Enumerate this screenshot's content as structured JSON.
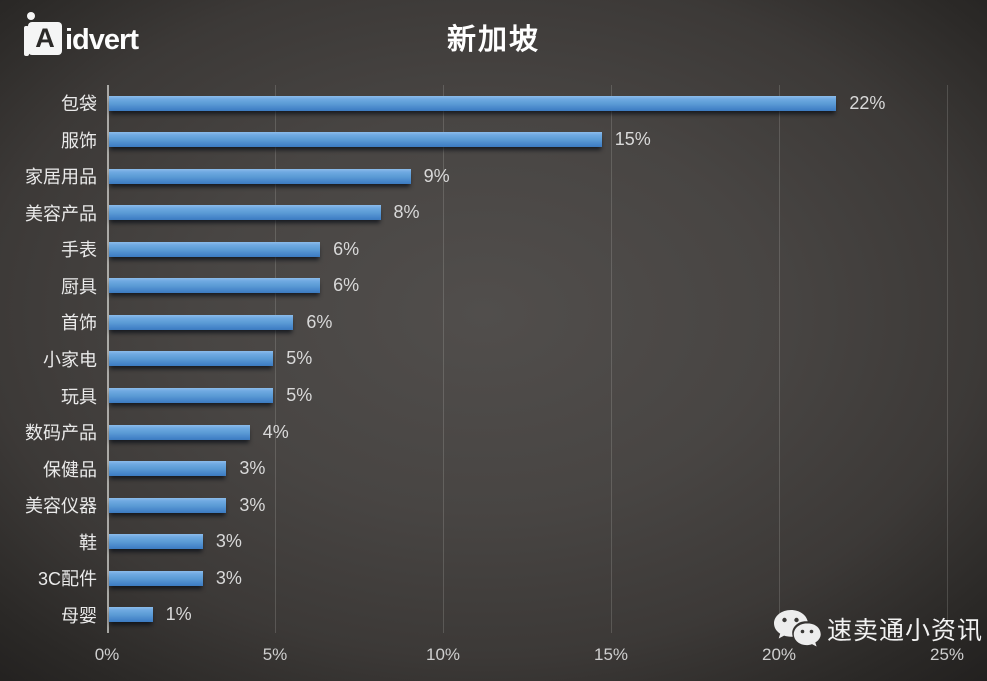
{
  "branding": {
    "logo_mark_letter": "A",
    "logo_text": "idvert"
  },
  "watermark": {
    "icon": "wechat-icon",
    "text": "速卖通小资讯"
  },
  "chart_data": {
    "type": "bar",
    "orientation": "horizontal",
    "title": "新加坡",
    "categories": [
      "包袋",
      "服饰",
      "家居用品",
      "美容产品",
      "手表",
      "厨具",
      "首饰",
      "小家电",
      "玩具",
      "数码产品",
      "保健品",
      "美容仪器",
      "鞋",
      "3C配件",
      "母婴"
    ],
    "values": [
      22,
      15,
      9,
      8,
      6,
      6,
      6,
      5,
      5,
      4,
      3,
      3,
      3,
      3,
      1
    ],
    "value_labels": [
      "22%",
      "15%",
      "9%",
      "8%",
      "6%",
      "6%",
      "6%",
      "5%",
      "5%",
      "4%",
      "3%",
      "3%",
      "3%",
      "3%",
      "1%"
    ],
    "bar_lengths_pct": [
      21.7,
      14.7,
      9.0,
      8.1,
      6.3,
      6.3,
      5.5,
      4.9,
      4.9,
      4.2,
      3.5,
      3.5,
      2.8,
      2.8,
      1.3
    ],
    "xlabel": "",
    "ylabel": "",
    "x_ticks": [
      "0%",
      "5%",
      "10%",
      "15%",
      "20%",
      "25%"
    ],
    "x_tick_values": [
      0,
      5,
      10,
      15,
      20,
      25
    ],
    "xlim": [
      0,
      25
    ],
    "grid": "vertical-major",
    "legend": "none",
    "data_labels": "outside-end",
    "colors": {
      "bar": "#5b9bd5",
      "bar_highlight": "#8cbcea",
      "bar_shadow_edge": "#3c7bc0",
      "background_center": "#4d4a48",
      "background_edge": "#232120",
      "category_text": "#eaeaea",
      "value_text": "#d9d9d9",
      "axis_line": "#c6c5c2",
      "gridline_rgba": "rgba(222,220,214,0.18)",
      "title_text": "#ffffff"
    }
  }
}
